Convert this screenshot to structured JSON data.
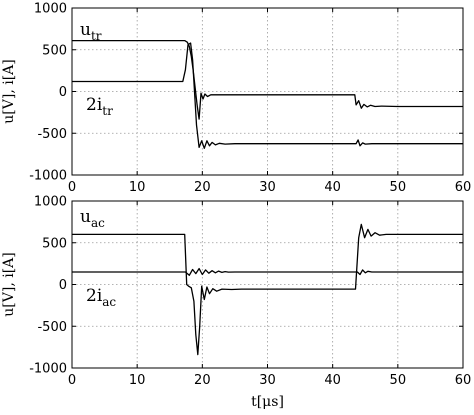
{
  "chart_data": [
    {
      "type": "line",
      "ylabel": "u[V], i[A]",
      "xlim": [
        0,
        60
      ],
      "ylim": [
        -1000,
        1000
      ],
      "xticks": [
        0,
        10,
        20,
        30,
        40,
        50,
        60
      ],
      "yticks": [
        -1000,
        -500,
        0,
        500,
        1000
      ],
      "xtick_labels": [
        "0",
        "10",
        "20",
        "30",
        "40",
        "50",
        "60"
      ],
      "ytick_labels": [
        "-1000",
        "-500",
        "0",
        "500",
        "1000"
      ],
      "grid": true,
      "annotations": [
        {
          "base": "u",
          "sub": "tr"
        },
        {
          "base": "2i",
          "sub": "tr"
        }
      ],
      "series": [
        {
          "x": [
            0,
            17.3,
            17.7,
            18.0,
            18.3,
            18.6,
            18.9,
            19.2,
            19.5,
            19.8,
            20.1,
            20.4,
            20.8,
            21.3,
            22,
            30,
            43.4,
            43.6,
            44.0,
            44.4,
            44.8,
            45.3,
            45.8,
            46.5,
            47.5,
            50,
            60
          ],
          "y": [
            610,
            610,
            590,
            540,
            420,
            250,
            40,
            -160,
            -330,
            -20,
            -90,
            -30,
            -60,
            -40,
            -40,
            -40,
            -40,
            -160,
            -110,
            -200,
            -155,
            -185,
            -165,
            -180,
            -175,
            -180,
            -180
          ]
        },
        {
          "x": [
            0,
            17.0,
            17.4,
            17.8,
            18.2,
            18.5,
            18.8,
            19.1,
            19.5,
            19.9,
            20.3,
            20.7,
            21.1,
            21.5,
            22.0,
            22.6,
            23.5,
            25,
            30,
            43.6,
            43.9,
            44.2,
            44.6,
            45.0,
            46,
            50,
            60
          ],
          "y": [
            120,
            120,
            260,
            560,
            580,
            380,
            0,
            -400,
            -670,
            -590,
            -680,
            -590,
            -650,
            -610,
            -640,
            -620,
            -630,
            -625,
            -625,
            -625,
            -580,
            -650,
            -615,
            -630,
            -625,
            -625,
            -625
          ]
        }
      ]
    },
    {
      "type": "line",
      "xlabel": "t[μs]",
      "ylabel": "u[V], i[A]",
      "xlim": [
        0,
        60
      ],
      "ylim": [
        -1000,
        1000
      ],
      "xticks": [
        0,
        10,
        20,
        30,
        40,
        50,
        60
      ],
      "yticks": [
        -1000,
        -500,
        0,
        500,
        1000
      ],
      "xtick_labels": [
        "0",
        "10",
        "20",
        "30",
        "40",
        "50",
        "60"
      ],
      "ytick_labels": [
        "-1000",
        "-500",
        "0",
        "500",
        "1000"
      ],
      "grid": true,
      "annotations": [
        {
          "base": "u",
          "sub": "ac"
        },
        {
          "base": "2i",
          "sub": "ac"
        }
      ],
      "series": [
        {
          "x": [
            0,
            17.3,
            17.6,
            17.9,
            18.3,
            18.7,
            19.0,
            19.3,
            19.6,
            19.9,
            20.3,
            20.7,
            21.1,
            21.6,
            22.2,
            23,
            24.5,
            26,
            30,
            43.5,
            44.0,
            44.4,
            44.9,
            45.4,
            45.9,
            46.5,
            47.2,
            48.2,
            50,
            60
          ],
          "y": [
            600,
            600,
            0,
            -20,
            -40,
            -200,
            -600,
            -840,
            -500,
            -20,
            -180,
            -30,
            -110,
            -50,
            -80,
            -55,
            -60,
            -55,
            -55,
            -55,
            560,
            720,
            560,
            660,
            580,
            620,
            590,
            600,
            600,
            600
          ]
        },
        {
          "x": [
            0,
            17.4,
            18.0,
            18.5,
            19.0,
            19.5,
            20.0,
            20.5,
            21.0,
            21.5,
            22.0,
            22.5,
            23.0,
            23.5,
            24.0,
            25,
            30,
            43.8,
            44.2,
            44.6,
            45.0,
            45.4,
            46,
            50,
            60
          ],
          "y": [
            150,
            150,
            110,
            180,
            130,
            190,
            120,
            175,
            135,
            165,
            140,
            160,
            145,
            155,
            148,
            150,
            150,
            150,
            120,
            175,
            140,
            158,
            150,
            150,
            150
          ]
        }
      ]
    }
  ]
}
